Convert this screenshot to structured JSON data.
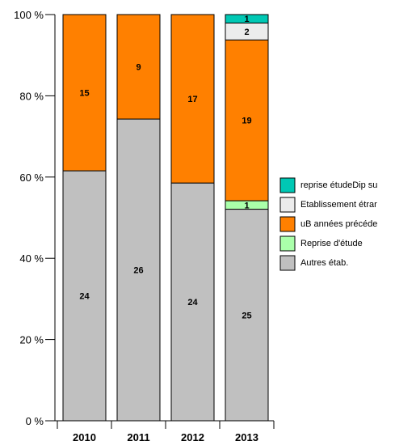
{
  "chart_data": {
    "type": "bar",
    "stacked": true,
    "normalized": true,
    "categories": [
      "2010",
      "2011",
      "2012",
      "2013"
    ],
    "series": [
      {
        "name": "Autres étab.",
        "color": "#c0c0c0",
        "values": [
          24,
          26,
          24,
          25
        ]
      },
      {
        "name": "Reprise d'étude",
        "color": "#aaffaa",
        "values": [
          0,
          0,
          0,
          1
        ]
      },
      {
        "name": "uB années précéde",
        "color": "#ff8000",
        "values": [
          15,
          9,
          17,
          19
        ]
      },
      {
        "name": "Etablissement étrar",
        "color": "#ececec",
        "values": [
          0,
          0,
          0,
          2
        ]
      },
      {
        "name": "reprise étudeDip su",
        "color": "#00c8b4",
        "values": [
          0,
          0,
          0,
          1
        ]
      }
    ],
    "y_ticks": [
      "0 %",
      "20 %",
      "40 %",
      "60 %",
      "80 %",
      "100 %"
    ],
    "ylim": [
      0,
      100
    ],
    "ylabel": "",
    "xlabel": "",
    "title": "",
    "legend_position": "right",
    "grid": false
  }
}
